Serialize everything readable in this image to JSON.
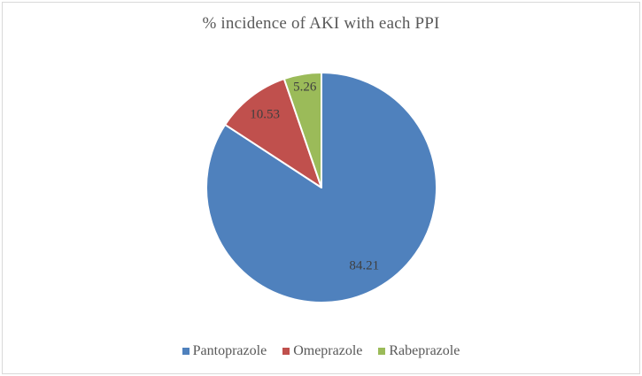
{
  "frame": {
    "background_color": "#FFFFFF",
    "border_color": "#D9D9D9"
  },
  "chart_data": {
    "type": "pie",
    "title": "% incidence of AKI with each PPI",
    "categories": [
      "Pantoprazole",
      "Omeprazole",
      "Rabeprazole"
    ],
    "values": [
      84.21,
      10.53,
      5.26
    ],
    "data_labels": [
      "84.21",
      "10.53",
      "5.26"
    ],
    "series_colors": [
      "#4F81BD",
      "#C0504D",
      "#9BBB59"
    ],
    "slice_border_color": "#FFFFFF",
    "start_angle_deg": 0,
    "direction": "clockwise",
    "legend_position": "bottom",
    "legend_entries": [
      "Pantoprazole",
      "Omeprazole",
      "Rabeprazole"
    ],
    "title_color": "#595959",
    "data_label_color": "#3F3F3F",
    "legend_text_color": "#595959"
  }
}
